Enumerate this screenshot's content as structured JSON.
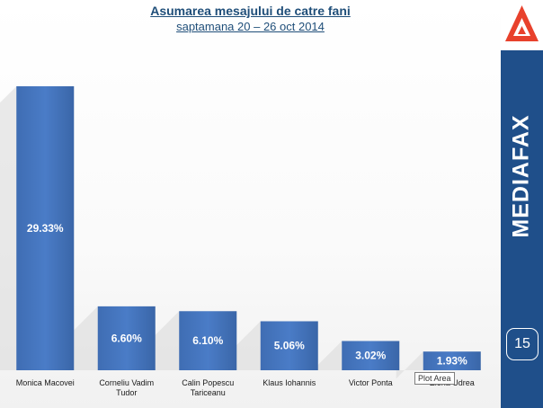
{
  "title": "Asumarea mesajului de catre fani",
  "subtitle": "saptamana 20 – 26 oct 2014",
  "brand": "MEDIAFAX",
  "page_number": "15",
  "tooltip": "Plot Area",
  "colors": {
    "bar": "#4472c4",
    "sidebar": "#1f4f8a",
    "logo_red": "#e8412c",
    "title": "#1f4e79"
  },
  "icons": {
    "logo": "mediafax-logo-icon"
  },
  "chart_data": {
    "type": "bar",
    "title": "Asumarea mesajului de catre fani",
    "subtitle": "saptamana 20 – 26 oct 2014",
    "categories": [
      [
        "Monica Macovei"
      ],
      [
        "Corneliu Vadim",
        "Tudor"
      ],
      [
        "Calin Popescu",
        "Tariceanu"
      ],
      [
        "Klaus Iohannis"
      ],
      [
        "Victor Ponta"
      ],
      [
        "Elena Udrea"
      ]
    ],
    "values": [
      29.33,
      6.6,
      6.1,
      5.06,
      3.02,
      1.93
    ],
    "value_labels": [
      "29.33%",
      "6.60%",
      "6.10%",
      "5.06%",
      "3.02%",
      "1.93%"
    ],
    "ylim": [
      0,
      31
    ],
    "grid": false,
    "legend": "none"
  }
}
